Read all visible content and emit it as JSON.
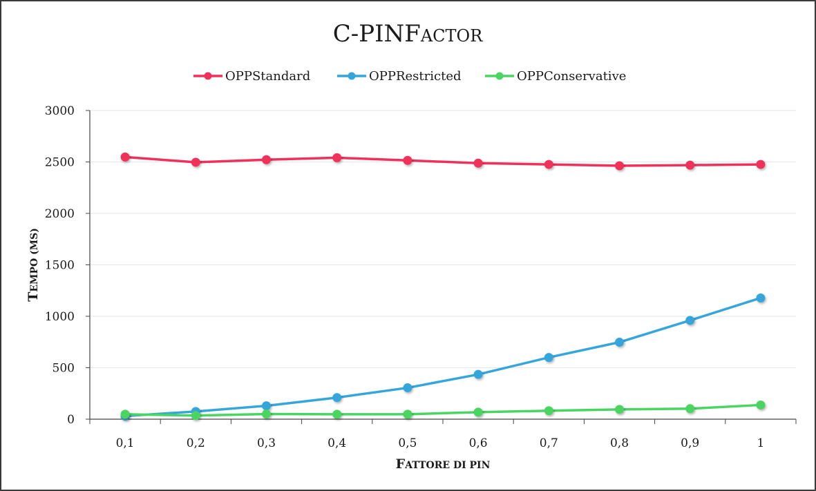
{
  "chart_data": {
    "type": "line",
    "title_main": "C-PINF",
    "title_smallcaps": "actor",
    "xlabel": "Fattore di pin",
    "ylabel": "Tempo (ms)",
    "categories": [
      "0,1",
      "0,2",
      "0,3",
      "0,4",
      "0,5",
      "0,6",
      "0,7",
      "0,8",
      "0,9",
      "1"
    ],
    "ylim": [
      0,
      3000
    ],
    "yticks": [
      "0",
      "500",
      "1000",
      "1500",
      "2000",
      "2500",
      "3000"
    ],
    "grid": true,
    "legend_position": "top",
    "series": [
      {
        "name": "OPPStandard",
        "color": "#f0305a",
        "values": [
          2548,
          2497,
          2522,
          2541,
          2515,
          2488,
          2476,
          2463,
          2469,
          2476
        ]
      },
      {
        "name": "OPPRestricted",
        "color": "#35a6dc",
        "values": [
          30,
          75,
          130,
          210,
          305,
          435,
          600,
          748,
          960,
          1178
        ]
      },
      {
        "name": "OPPConservative",
        "color": "#48d561",
        "values": [
          48,
          35,
          50,
          48,
          48,
          68,
          82,
          95,
          102,
          138
        ]
      }
    ]
  }
}
